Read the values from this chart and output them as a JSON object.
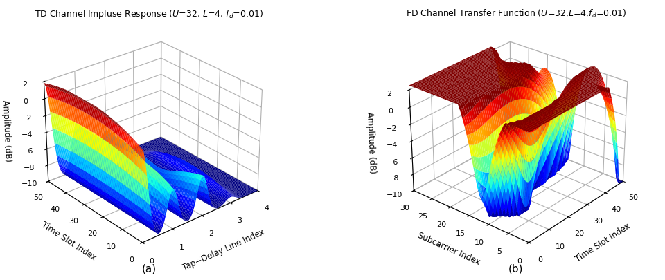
{
  "plot_a": {
    "title": "TD Channel Impluse Response ($U$=32, $L$=4, $f_d$=0.01)",
    "xlabel": "Tap−Delay Line Index",
    "ylabel": "Time Slot Index",
    "zlabel": "Amplitude (dB)",
    "tap_ticks": [
      0,
      1,
      2,
      3,
      4
    ],
    "time_ticks": [
      0,
      10,
      20,
      30,
      40,
      50
    ],
    "zlim": [
      -10,
      2
    ],
    "zticks": [
      -10,
      -8,
      -6,
      -4,
      -2,
      0,
      2
    ],
    "U": 32,
    "L": 4,
    "fd": 0.01,
    "label": "(a)"
  },
  "plot_b": {
    "title": "FD Channel Transfer Function ($U$=32,$L$=4,$f_d$=0.01)",
    "xlabel": "Time Slot Index",
    "ylabel": "Subcarrier Index",
    "zlabel": "Amplitude (dB)",
    "time_ticks": [
      0,
      10,
      20,
      30,
      40,
      50
    ],
    "sub_ticks": [
      0,
      5,
      10,
      15,
      20,
      25,
      30
    ],
    "zlim": [
      -10,
      2
    ],
    "zticks": [
      -10,
      -8,
      -6,
      -4,
      -2,
      0,
      2
    ],
    "U": 32,
    "L": 4,
    "fd": 0.01,
    "label": "(b)"
  },
  "background_color": "#ffffff",
  "cmap": "jet"
}
